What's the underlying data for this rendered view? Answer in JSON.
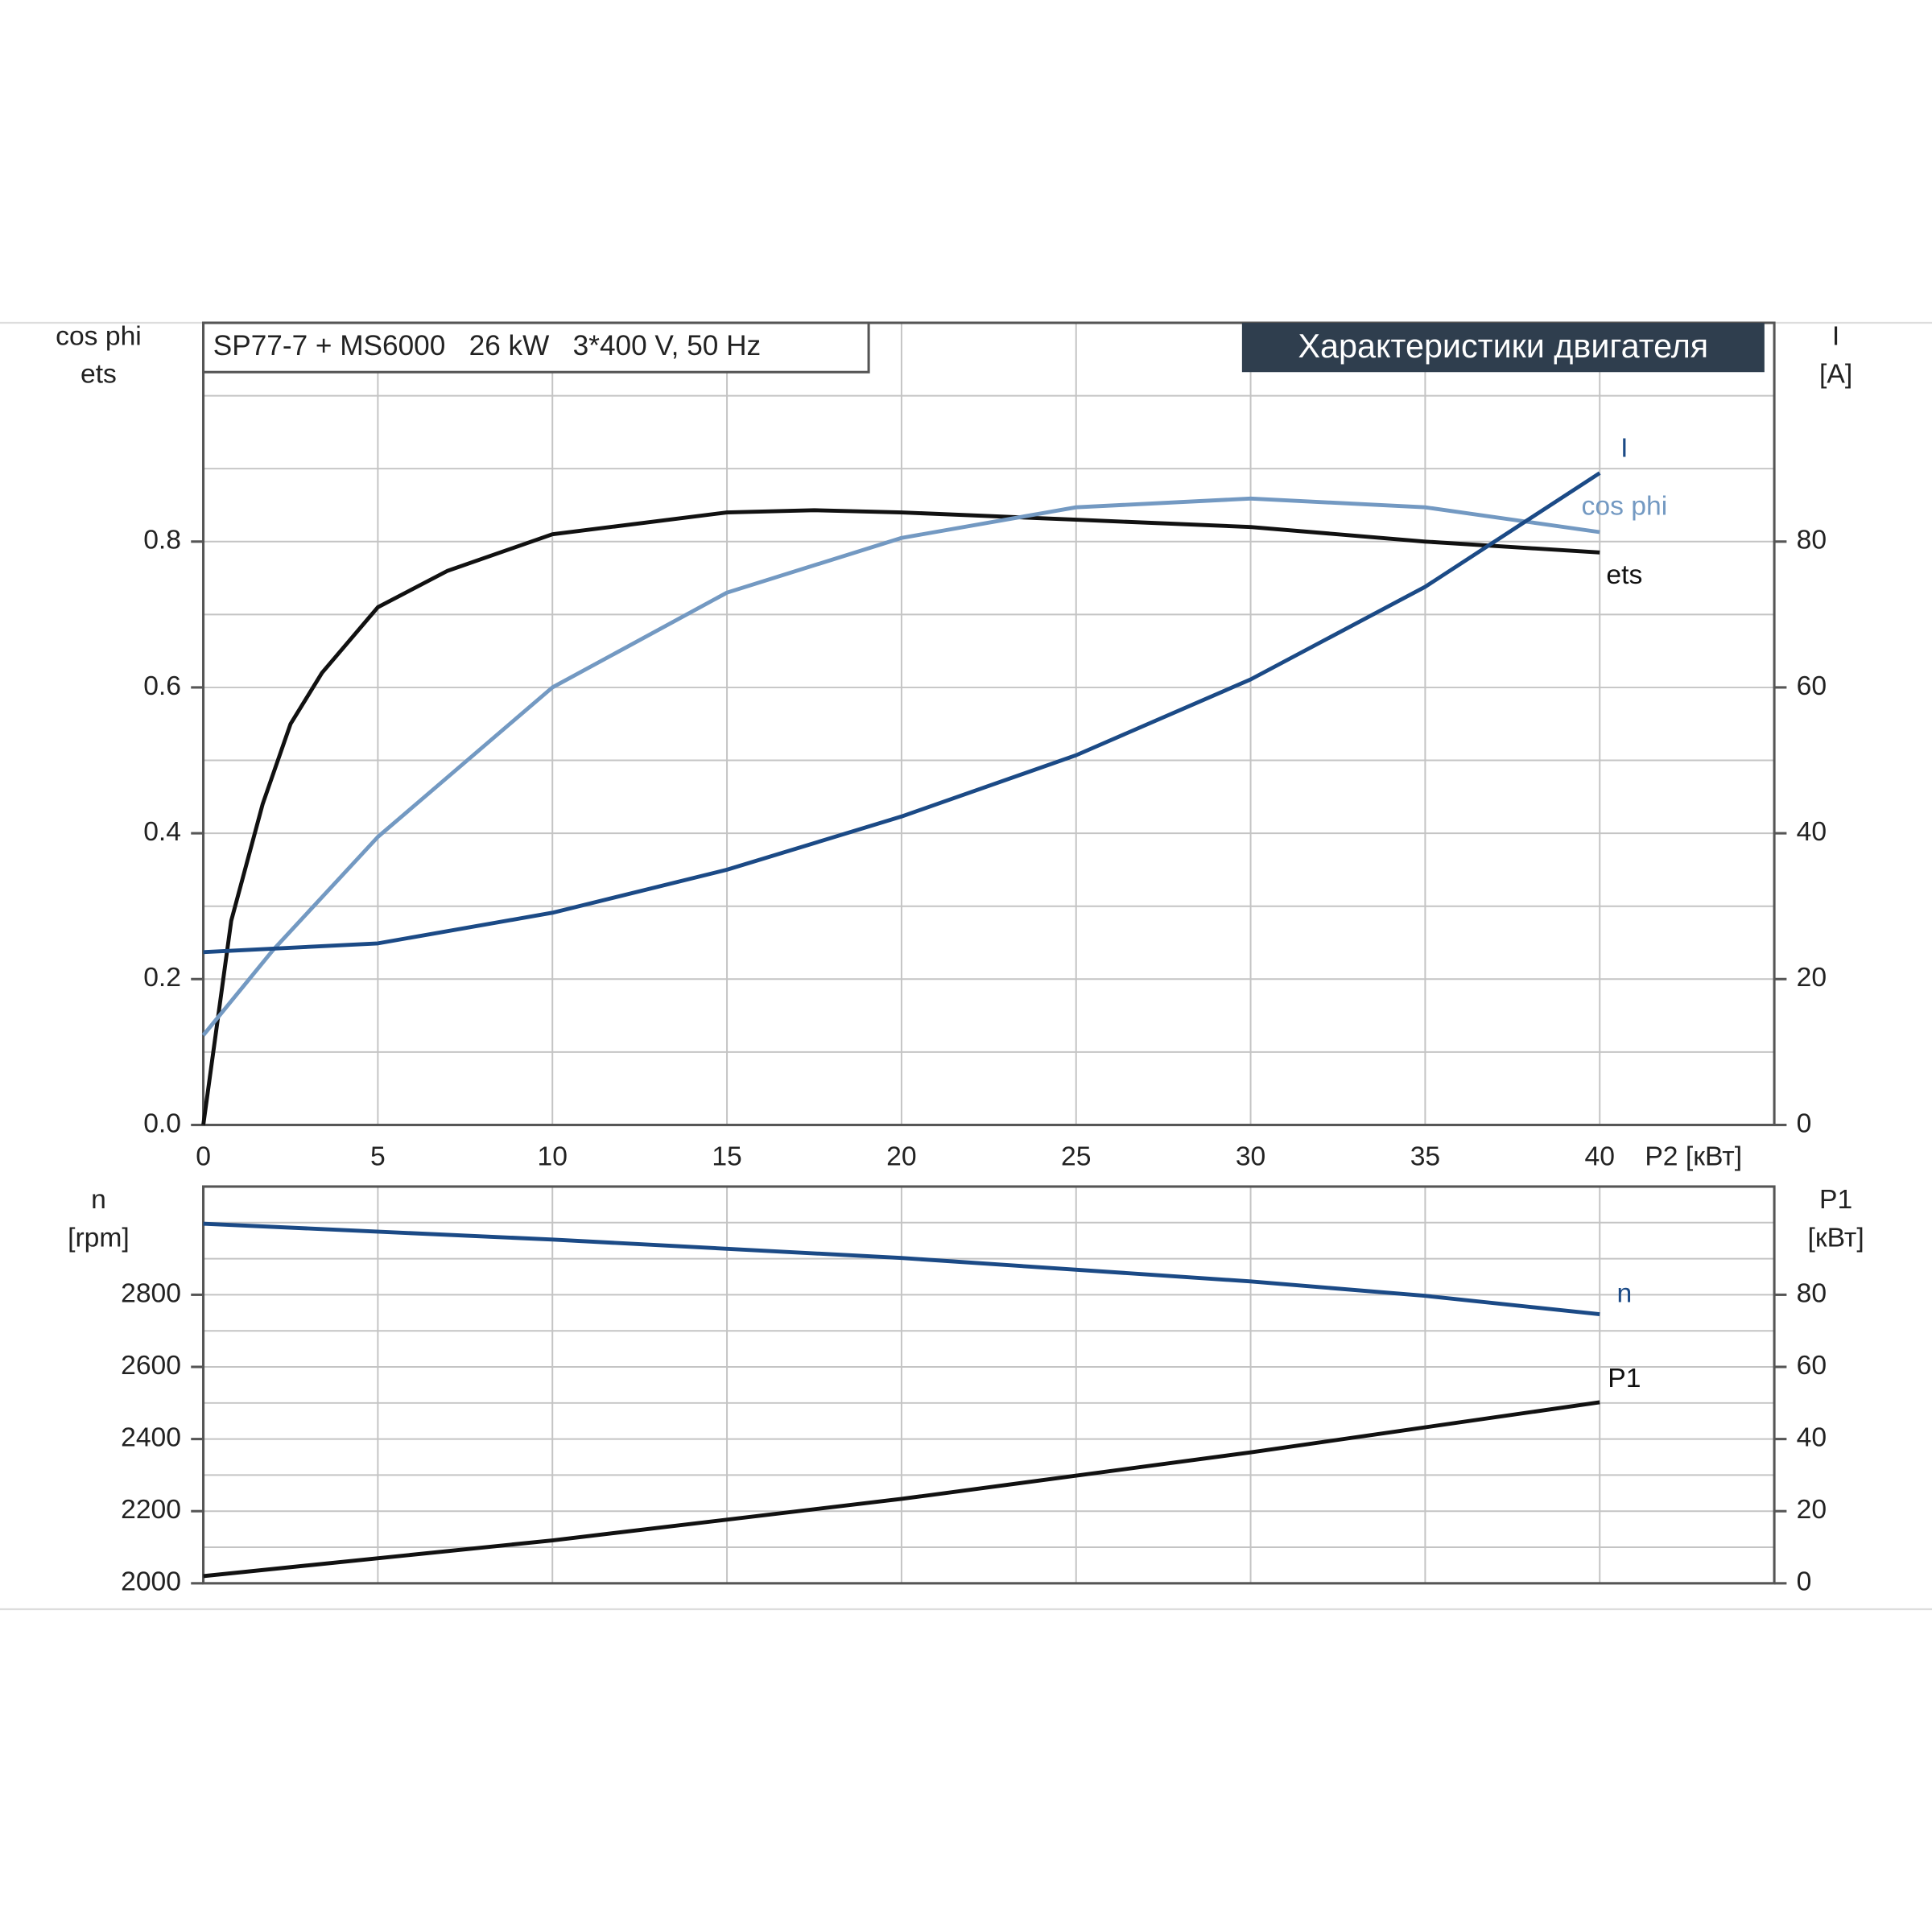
{
  "header": "Характеристики двигателя",
  "chart_data": [
    {
      "type": "line",
      "title": "SP77-7 + MS6000   26 kW   3*400 V, 50 Hz",
      "y_label": [
        "cos phi",
        "ets"
      ],
      "y2_label": [
        "I",
        "[A]"
      ],
      "x_label": "P2 [кВт]",
      "xlim": [
        0,
        45
      ],
      "xticks": [
        0,
        5,
        10,
        15,
        20,
        25,
        30,
        35,
        40
      ],
      "ylim": [
        0,
        1.1
      ],
      "yticks": [
        {
          "value": 0,
          "label": "0.0"
        },
        0.2,
        0.4,
        0.6,
        0.8
      ],
      "ygrid": [
        0.1,
        0.3,
        0.5,
        0.7,
        0.9,
        1.0
      ],
      "y2lim": [
        0,
        110
      ],
      "y2ticks": [
        0,
        20,
        40,
        60,
        80
      ],
      "grid": true,
      "series": [
        {
          "name": "ets",
          "color": "#111111",
          "x": [
            0,
            0.8,
            1.7,
            2.5,
            3.4,
            5,
            7,
            10,
            15,
            17.5,
            20,
            25,
            30,
            35,
            40
          ],
          "values": [
            0,
            0.28,
            0.44,
            0.55,
            0.62,
            0.71,
            0.76,
            0.81,
            0.84,
            0.843,
            0.84,
            0.83,
            0.82,
            0.8,
            0.785
          ]
        },
        {
          "name": "cos phi",
          "color": "#7399c2",
          "x": [
            0,
            2,
            5,
            10,
            15,
            20,
            25,
            30,
            35,
            40
          ],
          "values": [
            0.123,
            0.24,
            0.395,
            0.6,
            0.73,
            0.805,
            0.847,
            0.859,
            0.847,
            0.813
          ]
        },
        {
          "name": "I",
          "color": "#1b4a86",
          "axis": "y2",
          "x": [
            0,
            5,
            10,
            15,
            20,
            25,
            30,
            35,
            40
          ],
          "values": [
            23.7,
            24.9,
            29.1,
            35,
            42.3,
            50.7,
            61.1,
            73.8,
            89.4
          ]
        }
      ]
    },
    {
      "type": "line",
      "y_label": [
        "n",
        "[rpm]"
      ],
      "y2_label": [
        "P1",
        "[кВт]"
      ],
      "xlim": [
        0,
        45
      ],
      "xgrid": [
        5,
        10,
        15,
        20,
        25,
        30,
        35,
        40
      ],
      "ylim": [
        2000,
        3100
      ],
      "yticks": [
        2000,
        2200,
        2400,
        2600,
        2800
      ],
      "ygrid": [
        2100,
        2300,
        2500,
        2700,
        2900,
        3000
      ],
      "y2lim": [
        0,
        110
      ],
      "y2ticks": [
        0,
        20,
        40,
        60,
        80
      ],
      "grid": true,
      "series": [
        {
          "name": "n",
          "color": "#1b4a86",
          "x": [
            0,
            10,
            20,
            30,
            35,
            40
          ],
          "values": [
            2997,
            2953,
            2902,
            2837,
            2797,
            2746
          ]
        },
        {
          "name": "P1",
          "color": "#111111",
          "axis": "y2",
          "x": [
            0,
            10,
            20,
            30,
            40
          ],
          "values": [
            2,
            11.9,
            23.4,
            36.3,
            50.2
          ]
        }
      ]
    }
  ]
}
